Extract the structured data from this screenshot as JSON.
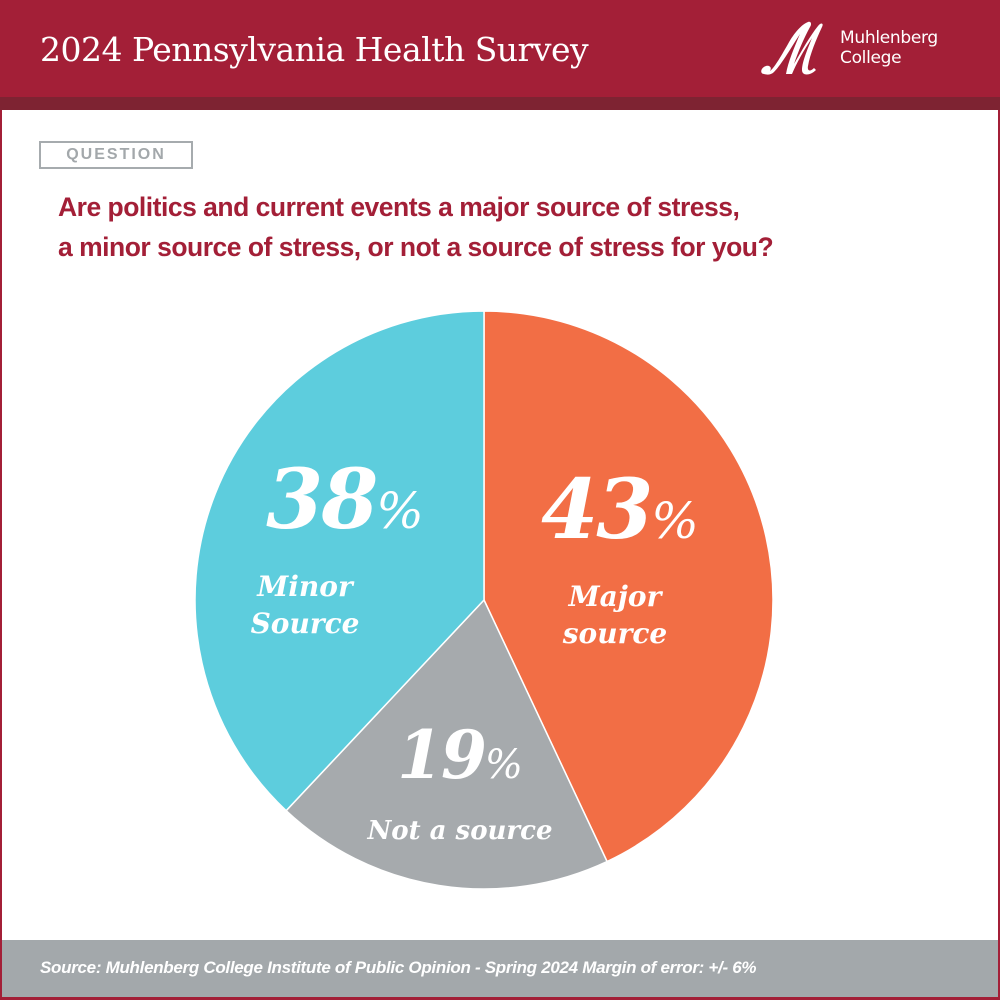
{
  "header": {
    "title": "2024 Pennsylvania Health Survey",
    "logo": {
      "icon": "muhlenberg-m-script-logo",
      "line1": "Muhlenberg",
      "line2": "College"
    }
  },
  "question": {
    "badge": "QUESTION",
    "text_line1": "Are politics and current events a major source of stress,",
    "text_line2": "a minor source of stress, or not a source of stress for you?"
  },
  "footer": {
    "source": "Source: Muhlenberg College Institute of Public Opinion - Spring 2024 Margin of error: +/- 6%"
  },
  "colors": {
    "brand": "#A31F37",
    "brand_dark": "#7E2332",
    "major": "#F26E45",
    "not": "#A6AAAD",
    "minor": "#5DCDDD",
    "footer_bg": "#A3A8AB"
  },
  "labels": {
    "major": {
      "value": "43",
      "sign": "%",
      "line1": "Major",
      "line2": "source"
    },
    "minor": {
      "value": "38",
      "sign": "%",
      "line1": "Minor",
      "line2": "Source"
    },
    "not": {
      "value": "19",
      "sign": "%",
      "line1": "Not a source"
    }
  },
  "chart_data": {
    "type": "pie",
    "title": "Are politics and current events a major source of stress, a minor source of stress, or not a source of stress for you?",
    "categories": [
      "Major source",
      "Not a source",
      "Minor Source"
    ],
    "values": [
      43,
      19,
      38
    ],
    "unit": "%",
    "colors": [
      "#F26E45",
      "#A6AAAD",
      "#5DCDDD"
    ],
    "start_angle": "12 o'clock, clockwise",
    "legend": "none (labels inside slices)"
  }
}
